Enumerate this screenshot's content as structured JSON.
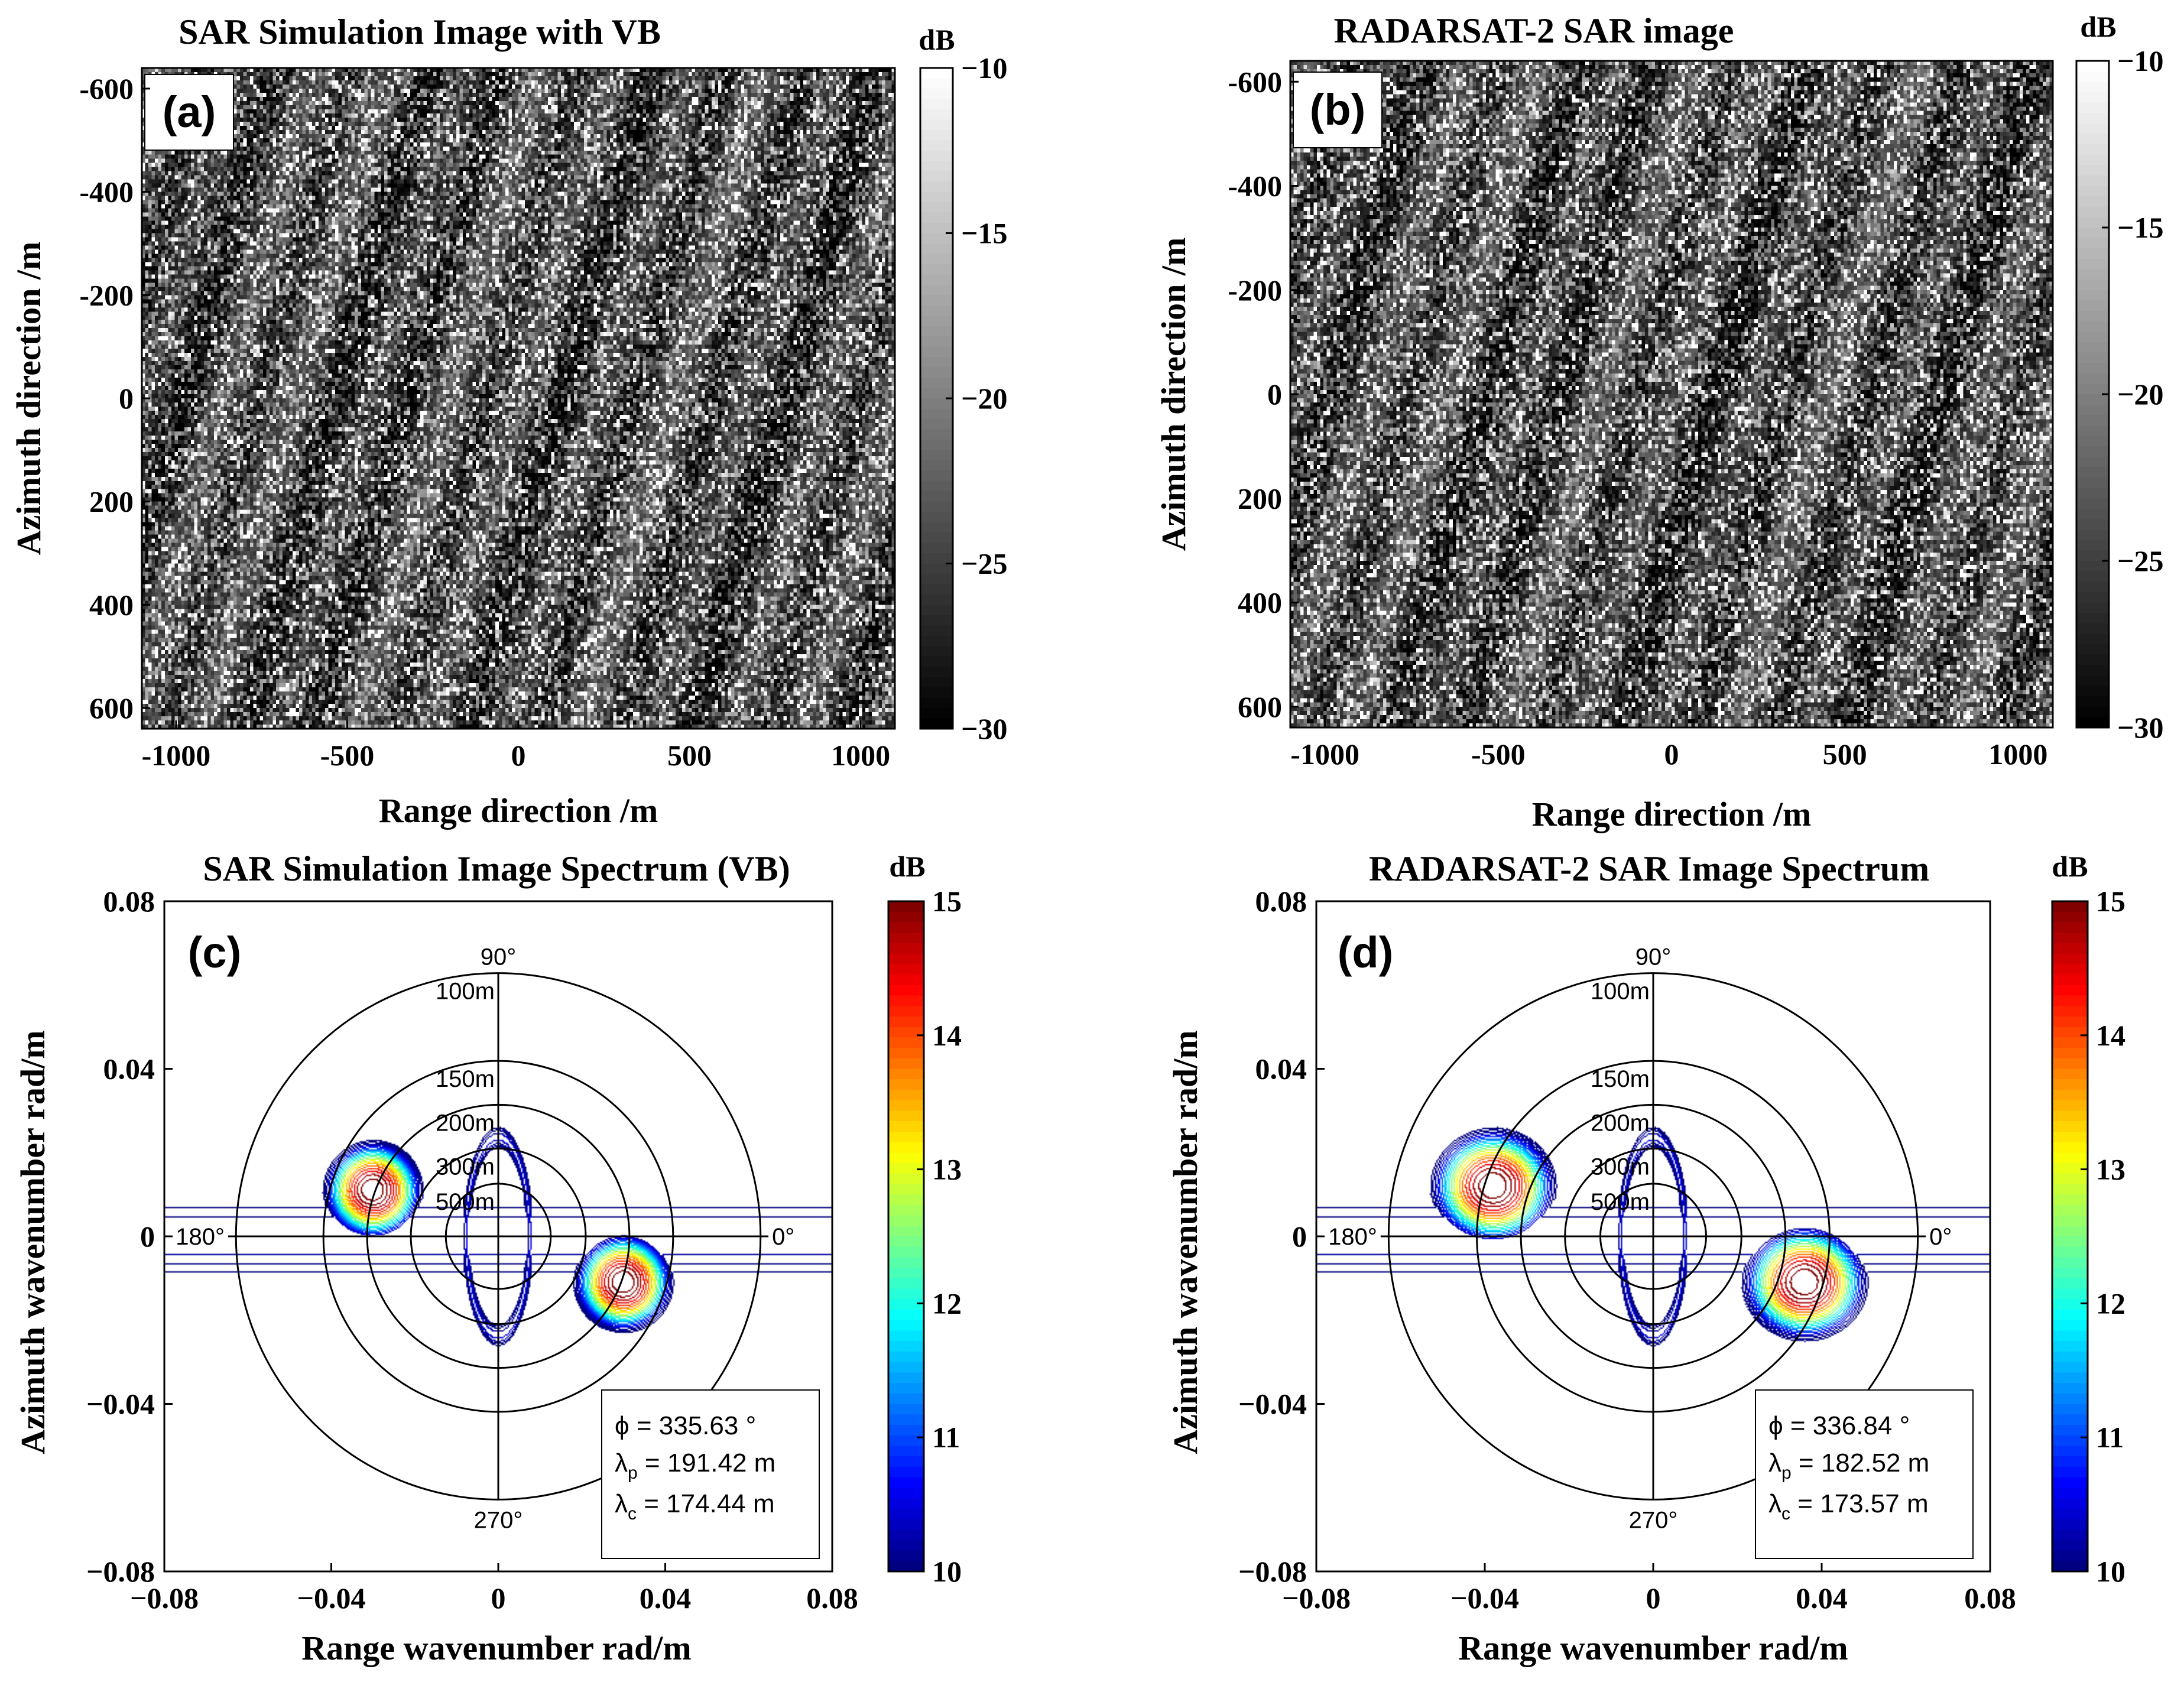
{
  "chart_data": [
    {
      "id": "a",
      "type": "heatmap",
      "panel_label": "(a)",
      "title": "SAR Simulation Image with VB",
      "xlabel": "Range direction /m",
      "ylabel": "Azimuth direction /m",
      "xlim": [
        -1100,
        1100
      ],
      "ylim": [
        -640,
        640
      ],
      "y_reversed": true,
      "xticks": [
        -1000,
        -500,
        0,
        500,
        1000
      ],
      "yticks": [
        -600,
        -400,
        -200,
        0,
        200,
        400,
        600
      ],
      "colormap": "gray",
      "colorbar": {
        "unit": "dB",
        "min": -30,
        "max": -10,
        "ticks": [
          -10,
          -15,
          -20,
          -25,
          -30
        ]
      },
      "seed": 11
    },
    {
      "id": "b",
      "type": "heatmap",
      "panel_label": "(b)",
      "title": "RADARSAT-2 SAR image",
      "xlabel": "Range direction /m",
      "ylabel": "Azimuth direction /m",
      "xlim": [
        -1100,
        1100
      ],
      "ylim": [
        -640,
        640
      ],
      "y_reversed": true,
      "xticks": [
        -1000,
        -500,
        0,
        500,
        1000
      ],
      "yticks": [
        -600,
        -400,
        -200,
        0,
        200,
        400,
        600
      ],
      "colormap": "gray",
      "colorbar": {
        "unit": "dB",
        "min": -30,
        "max": -10,
        "ticks": [
          -10,
          -15,
          -20,
          -25,
          -30
        ]
      },
      "seed": 29
    },
    {
      "id": "c",
      "type": "contour",
      "panel_label": "(c)",
      "title": "SAR Simulation Image Spectrum (VB)",
      "xlabel": "Range wavenumber rad/m",
      "ylabel": "Azimuth wavenumber rad/m",
      "xlim": [
        -0.08,
        0.08
      ],
      "ylim": [
        -0.08,
        0.08
      ],
      "xticks": [
        "-0.08",
        "-0.04",
        "0",
        "0.04",
        "0.08"
      ],
      "yticks": [
        "0.08",
        "0.04",
        "0",
        "-0.04",
        "-0.08"
      ],
      "colormap": "jet",
      "colorbar": {
        "unit": "dB",
        "min": 10,
        "max": 15,
        "ticks": [
          15,
          14,
          13,
          12,
          11,
          10
        ]
      },
      "polar_grid": {
        "circles": [
          {
            "label": "100m",
            "wavelength_m": 100
          },
          {
            "label": "150m",
            "wavelength_m": 150
          },
          {
            "label": "200m",
            "wavelength_m": 200
          },
          {
            "label": "300m",
            "wavelength_m": 300
          },
          {
            "label": "500m",
            "wavelength_m": 500
          }
        ],
        "angle_labels": [
          "90°",
          "180°",
          "0°",
          "270°"
        ]
      },
      "peaks": [
        {
          "kx": -0.03,
          "ky": 0.011,
          "amplitude": 15.8,
          "sx": 0.012,
          "sy": 0.012
        },
        {
          "kx": 0.03,
          "ky": -0.011,
          "amplitude": 15.8,
          "sx": 0.012,
          "sy": 0.012
        }
      ],
      "background_extent_kx": 0.08,
      "annotation": {
        "phi_label": "ϕ = 335.63 °",
        "lambda_p_pre": "λ",
        "lambda_p_sub": "p",
        "lambda_p_post": " = 191.42 m",
        "lambda_c_pre": "λ",
        "lambda_c_sub": "c",
        "lambda_c_post": " = 174.44 m",
        "phi_deg": 335.63,
        "lambda_p_m": 191.42,
        "lambda_c_m": 174.44
      }
    },
    {
      "id": "d",
      "type": "contour",
      "panel_label": "(d)",
      "title": "RADARSAT-2 SAR Image Spectrum",
      "xlabel": "Range wavenumber rad/m",
      "ylabel": "Azimuth wavenumber rad/m",
      "xlim": [
        -0.08,
        0.08
      ],
      "ylim": [
        -0.08,
        0.08
      ],
      "xticks": [
        "-0.08",
        "-0.04",
        "0",
        "0.04",
        "0.08"
      ],
      "yticks": [
        "0.08",
        "0.04",
        "0",
        "-0.04",
        "-0.08"
      ],
      "colormap": "jet",
      "colorbar": {
        "unit": "dB",
        "min": 10,
        "max": 15,
        "ticks": [
          15,
          14,
          13,
          12,
          11,
          10
        ]
      },
      "polar_grid": {
        "circles": [
          {
            "label": "100m",
            "wavelength_m": 100
          },
          {
            "label": "150m",
            "wavelength_m": 150
          },
          {
            "label": "200m",
            "wavelength_m": 200
          },
          {
            "label": "300m",
            "wavelength_m": 300
          },
          {
            "label": "500m",
            "wavelength_m": 500
          }
        ],
        "angle_labels": [
          "90°",
          "180°",
          "0°",
          "270°"
        ]
      },
      "peaks": [
        {
          "kx": -0.038,
          "ky": 0.012,
          "amplitude": 15.8,
          "sx": 0.015,
          "sy": 0.014
        },
        {
          "kx": 0.036,
          "ky": -0.011,
          "amplitude": 15.8,
          "sx": 0.015,
          "sy": 0.014
        }
      ],
      "background_extent_kx": 0.08,
      "annotation": {
        "phi_label": "ϕ = 336.84 °",
        "lambda_p_pre": "λ",
        "lambda_p_sub": "p",
        "lambda_p_post": " = 182.52 m",
        "lambda_c_pre": "λ",
        "lambda_c_sub": "c",
        "lambda_c_post": " = 173.57 m",
        "phi_deg": 336.84,
        "lambda_p_m": 182.52,
        "lambda_c_m": 173.57
      }
    }
  ]
}
